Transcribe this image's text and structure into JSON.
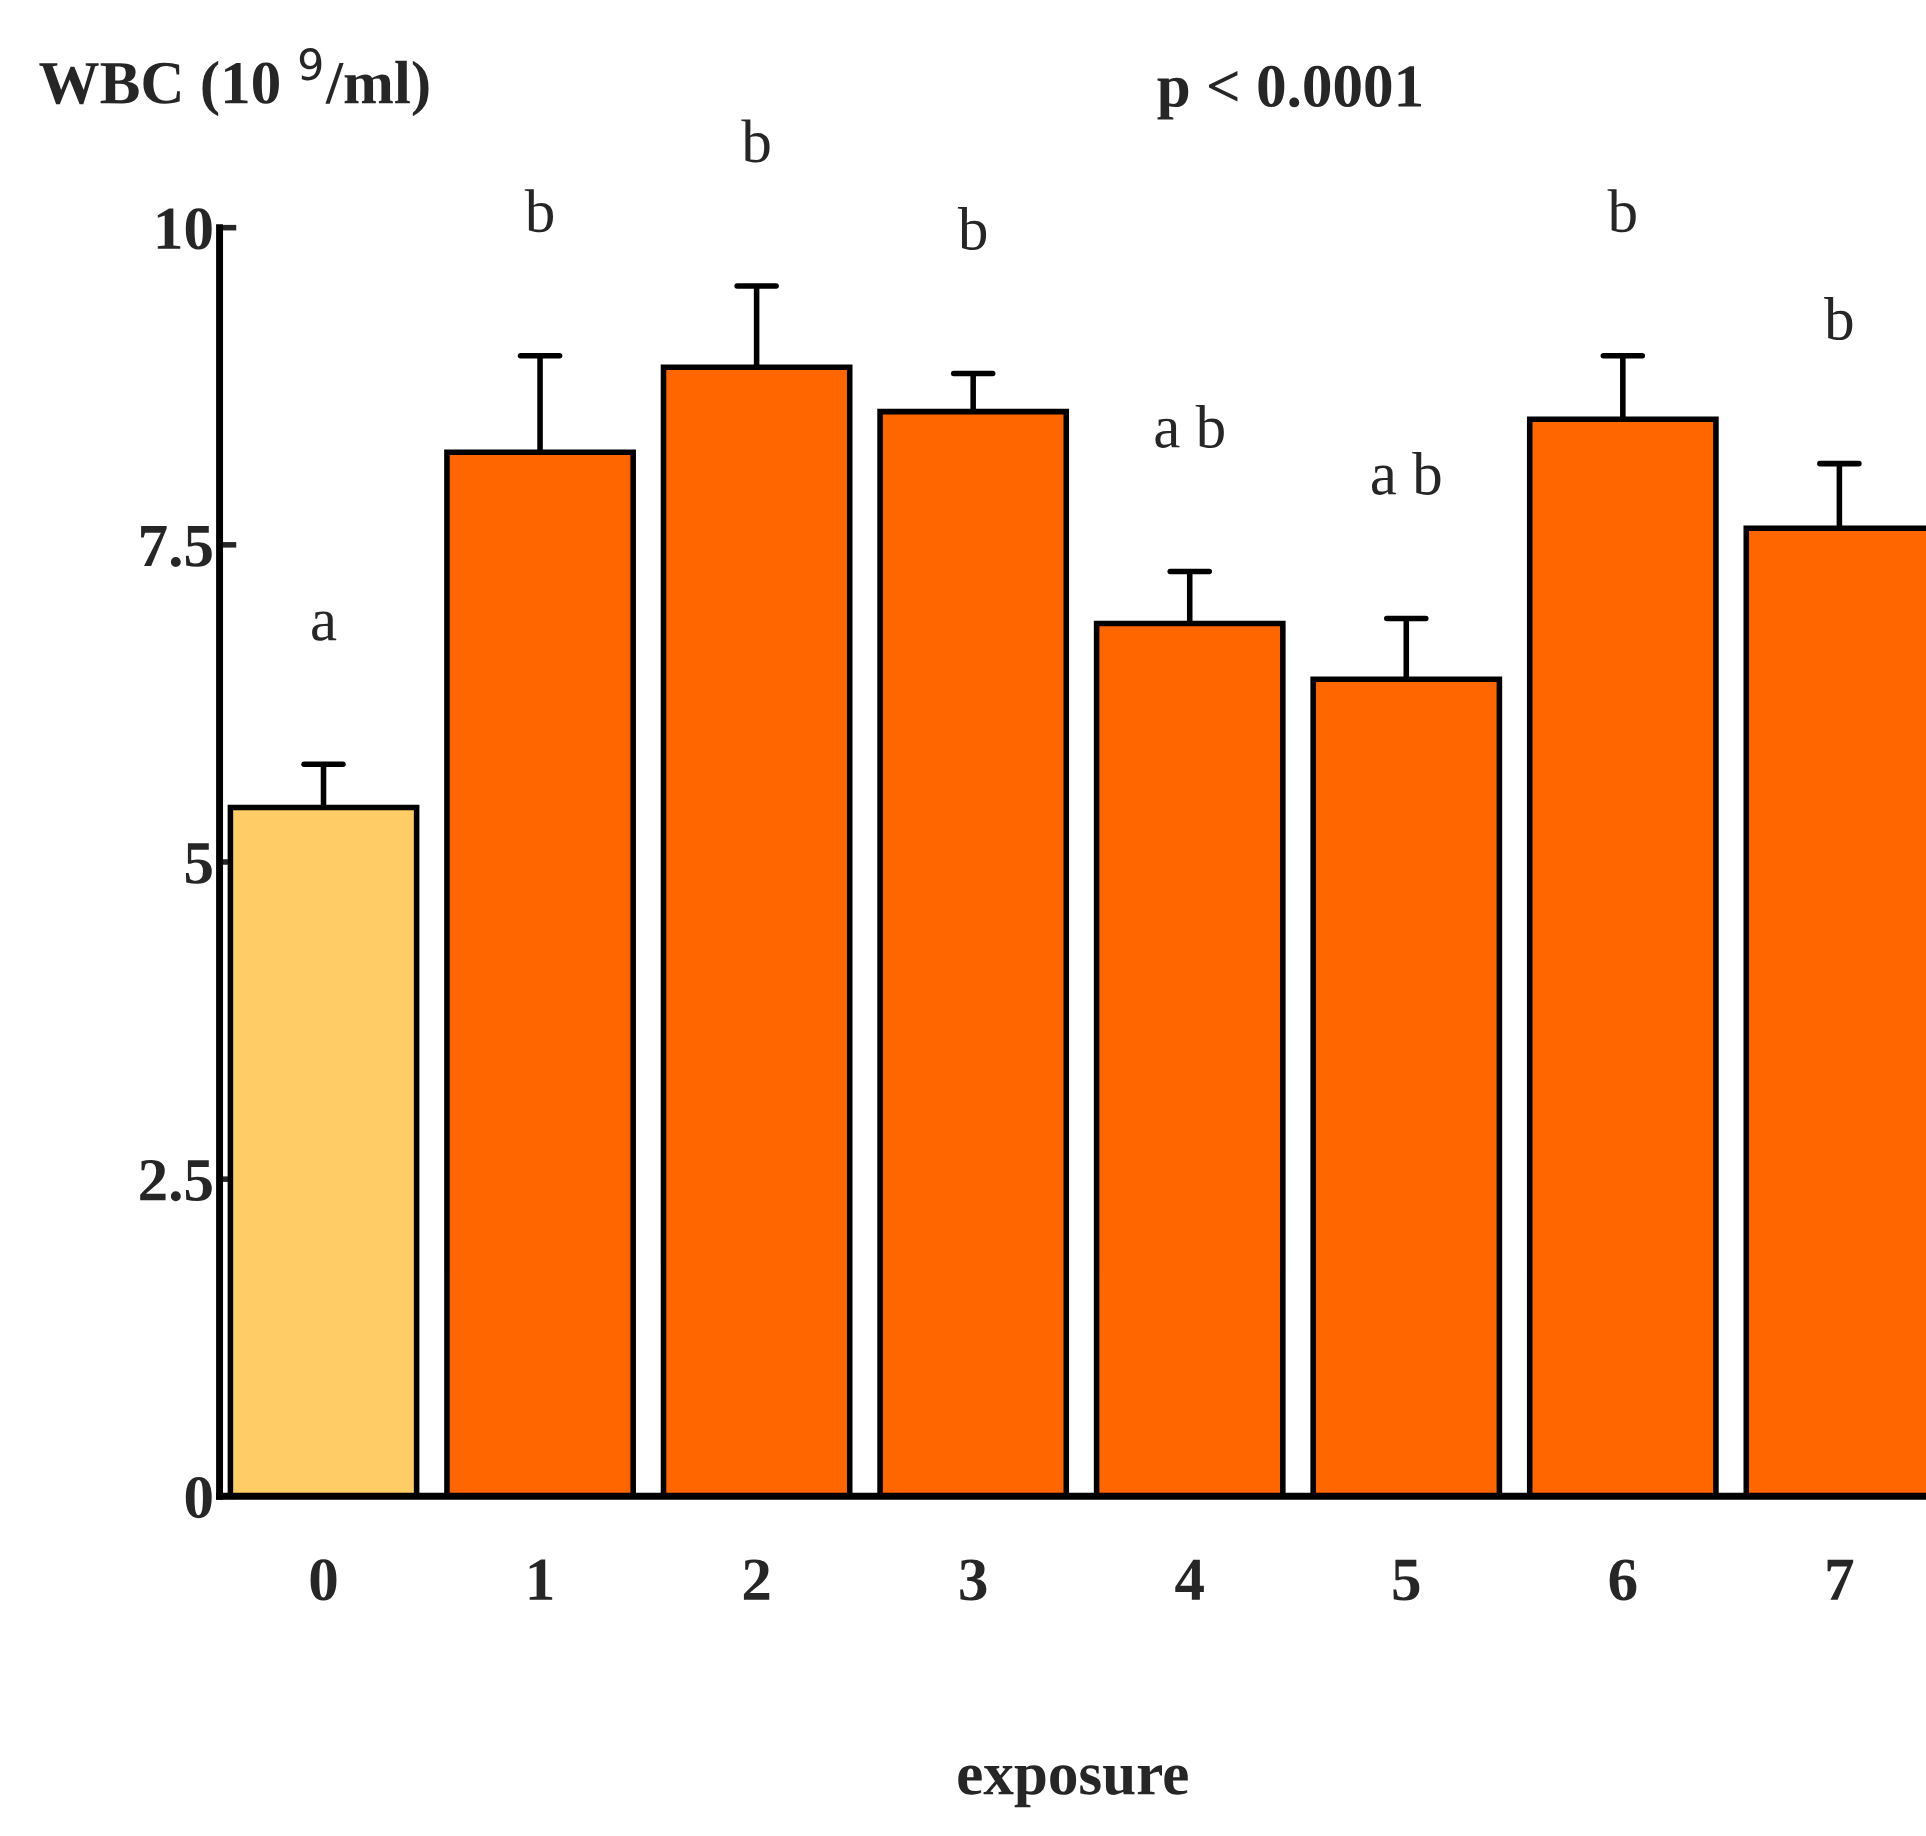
{
  "chart_data": {
    "type": "bar",
    "title": "p < 0.0001",
    "ylabel": "WBC (10 $^{9}$/ml)",
    "xlabel": "exposure",
    "categories": [
      "0",
      "1",
      "2",
      "3",
      "4",
      "5",
      "6",
      "7"
    ],
    "values": [
      5.43,
      8.23,
      8.9,
      8.55,
      6.88,
      6.44,
      8.49,
      7.63
    ],
    "errors": [
      [
        5.43,
        5.77
      ],
      [
        8.23,
        8.99
      ],
      [
        8.9,
        9.54
      ],
      [
        8.55,
        8.85
      ],
      [
        6.88,
        7.29
      ],
      [
        6.44,
        6.92
      ],
      [
        8.49,
        8.99
      ],
      [
        7.63,
        8.14
      ]
    ],
    "colors": [
      "#ffcc66",
      "#ff6600",
      "#ff6600",
      "#ff6600",
      "#ff6600",
      "#ff6600",
      "#ff6600",
      "#ff6600"
    ],
    "ylim": [
      0,
      10
    ],
    "yticks": [
      0,
      2.5,
      5,
      7.5,
      10
    ],
    "grid": false,
    "legend": false,
    "annotations": [
      "a",
      "b",
      "b",
      "b",
      "a b",
      "a b",
      "b",
      "b"
    ]
  }
}
